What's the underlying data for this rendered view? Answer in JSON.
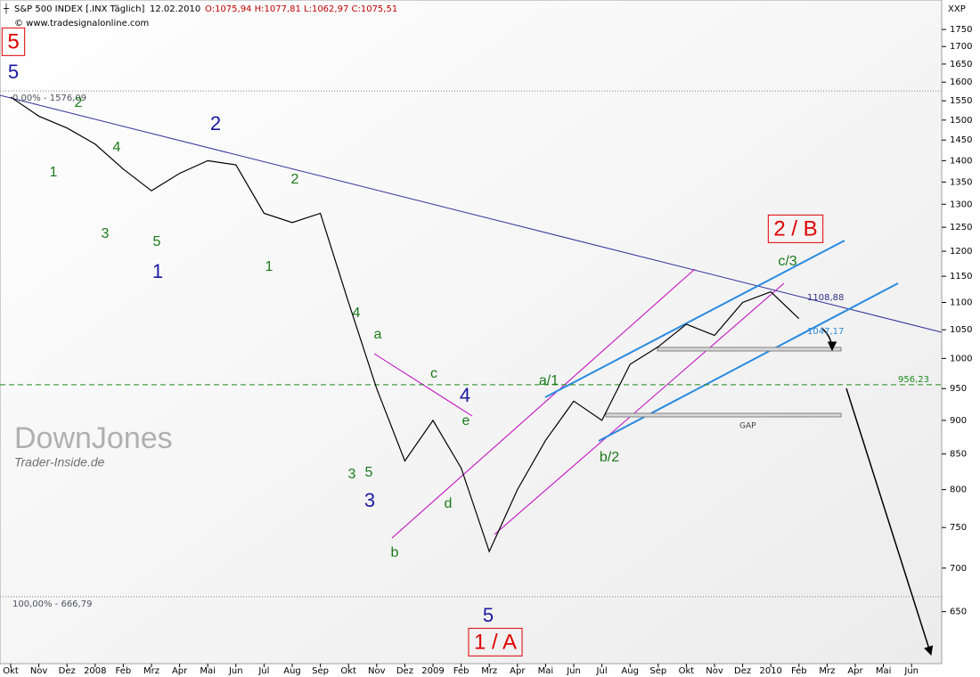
{
  "header": {
    "title": "S&P 500 INDEX [.INX  Täglich]",
    "date": "12.02.2010",
    "ohlc": "O:1075,94 H:1077,81 L:1062,97 C:1075,51",
    "copyright": "© www.tradesignalonline.com"
  },
  "watermark": {
    "title": "DownJones",
    "subtitle": "Trader-Inside.de"
  },
  "chart_data": {
    "type": "line",
    "y_axis_label": "XXP",
    "log_scale": true,
    "categories": [
      "Okt",
      "Nov",
      "Dez",
      "2008",
      "Feb",
      "Mrz",
      "Apr",
      "Mai",
      "Jun",
      "Jul",
      "Aug",
      "Sep",
      "Okt",
      "Nov",
      "Dez",
      "2009",
      "Feb",
      "Mrz",
      "Apr",
      "Mai",
      "Jun",
      "Jul",
      "Aug",
      "Sep",
      "Okt",
      "Nov",
      "Dez",
      "2010",
      "Feb",
      "Mrz",
      "Apr",
      "Mai",
      "Jun"
    ],
    "series": [
      {
        "name": "S&P 500 INDEX",
        "color": "#000000",
        "values": [
          1560,
          1510,
          1480,
          1440,
          1380,
          1330,
          1370,
          1400,
          1390,
          1280,
          1260,
          1280,
          1100,
          950,
          840,
          900,
          830,
          720,
          800,
          870,
          930,
          900,
          990,
          1020,
          1060,
          1040,
          1100,
          1120,
          1070,
          null,
          null,
          null,
          null
        ]
      }
    ],
    "ylim": [
      595,
      1840
    ],
    "yticks": [
      650,
      700,
      750,
      800,
      850,
      900,
      950,
      1000,
      1050,
      1100,
      1150,
      1200,
      1250,
      1300,
      1350,
      1400,
      1450,
      1500,
      1550,
      1600,
      1650,
      1700,
      1750
    ],
    "reference_lines": [
      {
        "label": "0,00% - 1576,09",
        "value": 1576.09,
        "color": "#808080"
      },
      {
        "label": "100,00% - 666,79",
        "value": 666.79,
        "color": "#808080"
      },
      {
        "label": "956,23",
        "value": 956.23,
        "color": "#1a8a1a"
      }
    ],
    "level_labels": [
      {
        "label": "1108,88",
        "value": 1108.88,
        "color": "#30308a"
      },
      {
        "label": "1047,17",
        "value": 1047.17,
        "color": "#2a8ae0"
      }
    ],
    "gap_label": "GAP",
    "annotations": [
      {
        "text": "5",
        "color": "#e00000"
      },
      {
        "text": "5",
        "color": "#1a1aa0"
      },
      {
        "text": "2",
        "color": "#1a7a1a"
      },
      {
        "text": "1",
        "color": "#1a7a1a"
      },
      {
        "text": "3",
        "color": "#1a7a1a"
      },
      {
        "text": "4",
        "color": "#1a7a1a"
      },
      {
        "text": "5",
        "color": "#1a7a1a"
      },
      {
        "text": "1",
        "color": "#1a1aa0"
      },
      {
        "text": "2",
        "color": "#1a1aa0"
      },
      {
        "text": "2",
        "color": "#1a7a1a"
      },
      {
        "text": "1",
        "color": "#1a7a1a"
      },
      {
        "text": "4",
        "color": "#1a7a1a"
      },
      {
        "text": "a",
        "color": "#1a7a1a"
      },
      {
        "text": "c",
        "color": "#1a7a1a"
      },
      {
        "text": "4",
        "color": "#1a1aa0"
      },
      {
        "text": "e",
        "color": "#1a7a1a"
      },
      {
        "text": "3",
        "color": "#1a7a1a"
      },
      {
        "text": "5",
        "color": "#1a7a1a"
      },
      {
        "text": "3",
        "color": "#1a1aa0"
      },
      {
        "text": "b",
        "color": "#1a7a1a"
      },
      {
        "text": "d",
        "color": "#1a7a1a"
      },
      {
        "text": "5",
        "color": "#1a1aa0"
      },
      {
        "text": "1 / A",
        "color": "#e00000"
      },
      {
        "text": "a/1",
        "color": "#1a7a1a"
      },
      {
        "text": "b/2",
        "color": "#1a7a1a"
      },
      {
        "text": "c/3",
        "color": "#1a7a1a"
      },
      {
        "text": "2 / B",
        "color": "#e00000"
      }
    ]
  }
}
